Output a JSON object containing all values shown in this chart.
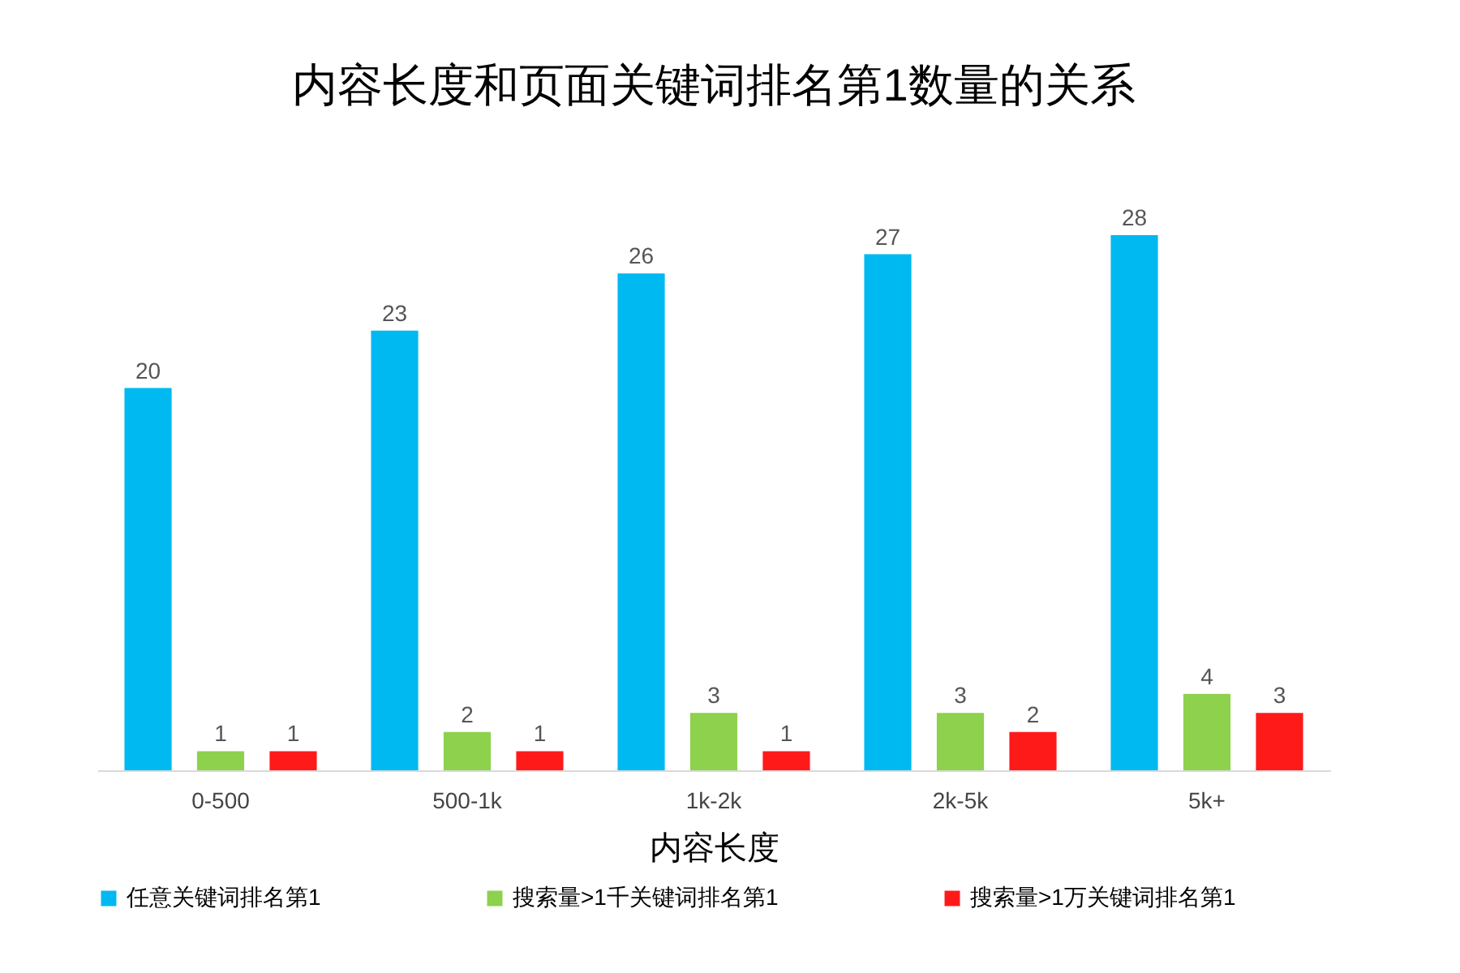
{
  "chart_data": {
    "type": "bar",
    "title": "内容长度和页面关键词排名第1数量的关系",
    "xlabel": "内容长度",
    "categories": [
      "0-500",
      "500-1k",
      "1k-2k",
      "2k-5k",
      "5k+"
    ],
    "series": [
      {
        "name": "任意关键词排名第1",
        "color": "#00b9f1",
        "values": [
          20,
          23,
          26,
          27,
          28
        ]
      },
      {
        "name": "搜索量>1千关键词排名第1",
        "color": "#8dd14c",
        "values": [
          1,
          2,
          3,
          3,
          4
        ]
      },
      {
        "name": "搜索量>1万关键词排名第1",
        "color": "#ff1a1a",
        "values": [
          1,
          1,
          1,
          2,
          3
        ]
      }
    ],
    "data_labels": true,
    "legend": "bottom",
    "grid": false
  }
}
